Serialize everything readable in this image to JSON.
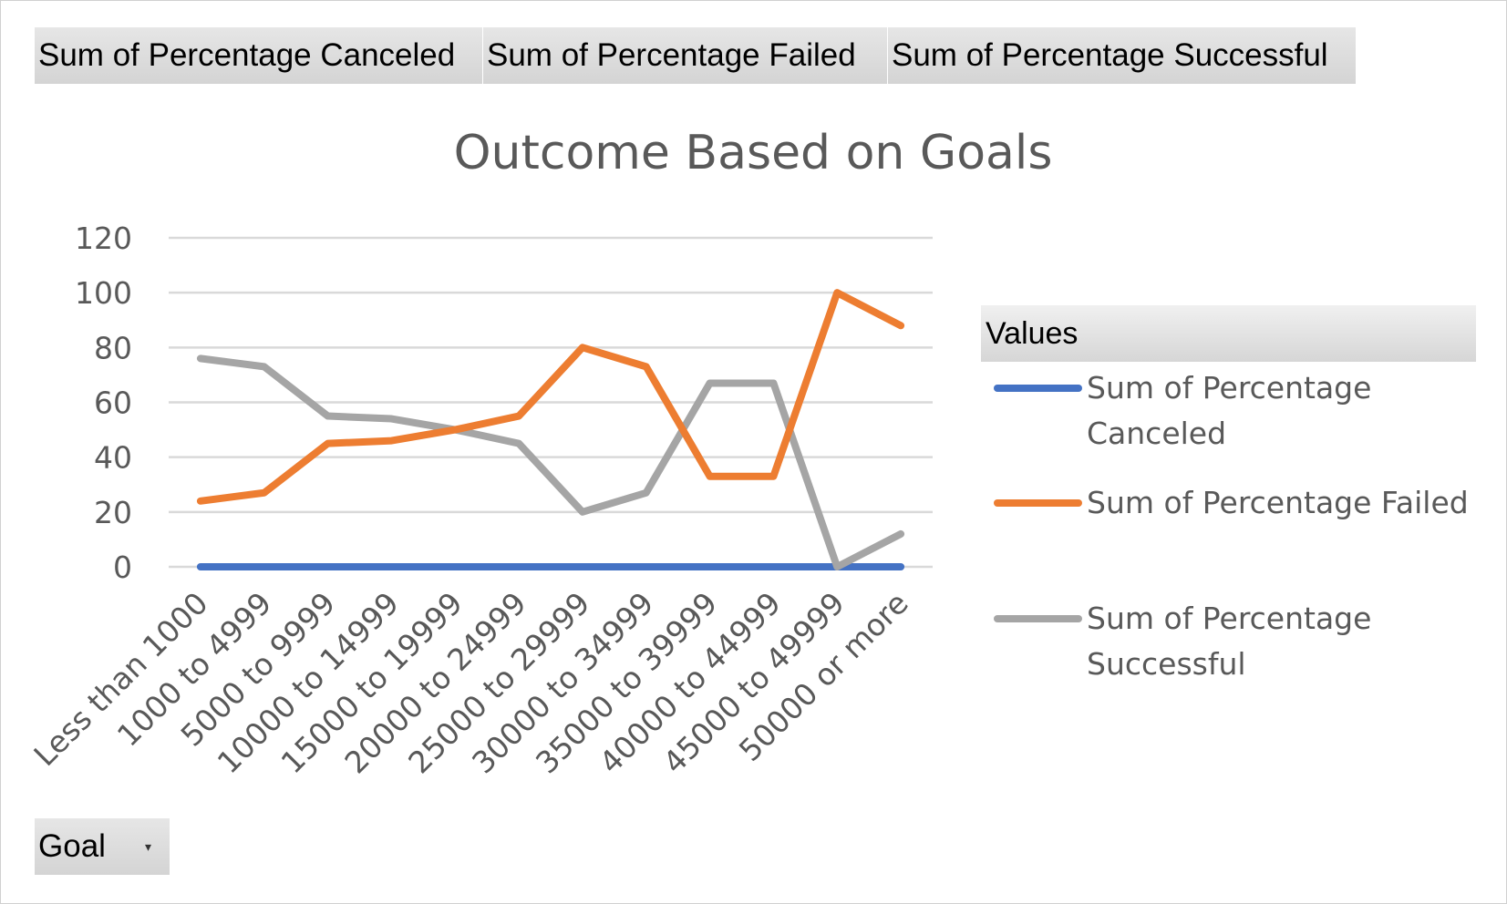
{
  "field_buttons": [
    "Sum of Percentage  Canceled",
    "Sum of Percentage  Failed",
    "Sum of Percentage  Successful"
  ],
  "axis_field": {
    "label": "Goal",
    "dropdown_icon": "dropdown-arrow-icon"
  },
  "legend": {
    "header": "Values",
    "entries": [
      {
        "lines": [
          "Sum of Percentage",
          "Canceled"
        ],
        "color": "#4472C4"
      },
      {
        "lines": [
          "Sum of Percentage Failed"
        ],
        "color": "#ED7D31"
      },
      {
        "lines": [
          "Sum of Percentage",
          "Successful"
        ],
        "color": "#A5A5A5"
      }
    ]
  },
  "chart_data": {
    "type": "line",
    "title": "Outcome Based on Goals",
    "categories": [
      "Less than 1000",
      "1000 to 4999",
      "5000 to 9999",
      "10000 to 14999",
      "15000 to 19999",
      "20000 to 24999",
      "25000 to 29999",
      "30000 to 34999",
      "35000 to 39999",
      "40000 to 44999",
      "45000 to 49999",
      "50000 or more"
    ],
    "series": [
      {
        "name": "Sum of Percentage Canceled",
        "color": "#4472C4",
        "values": [
          0,
          0,
          0,
          0,
          0,
          0,
          0,
          0,
          0,
          0,
          0,
          0
        ]
      },
      {
        "name": "Sum of Percentage Failed",
        "color": "#ED7D31",
        "values": [
          24,
          27,
          45,
          46,
          50,
          55,
          80,
          73,
          33,
          33,
          100,
          88
        ]
      },
      {
        "name": "Sum of Percentage Successful",
        "color": "#A5A5A5",
        "values": [
          76,
          73,
          55,
          54,
          50,
          45,
          20,
          27,
          67,
          67,
          0,
          12
        ]
      }
    ],
    "y_ticks": [
      0,
      20,
      40,
      60,
      80,
      100,
      120
    ],
    "ylim": [
      0,
      120
    ],
    "grid": true,
    "legend_position": "right"
  }
}
